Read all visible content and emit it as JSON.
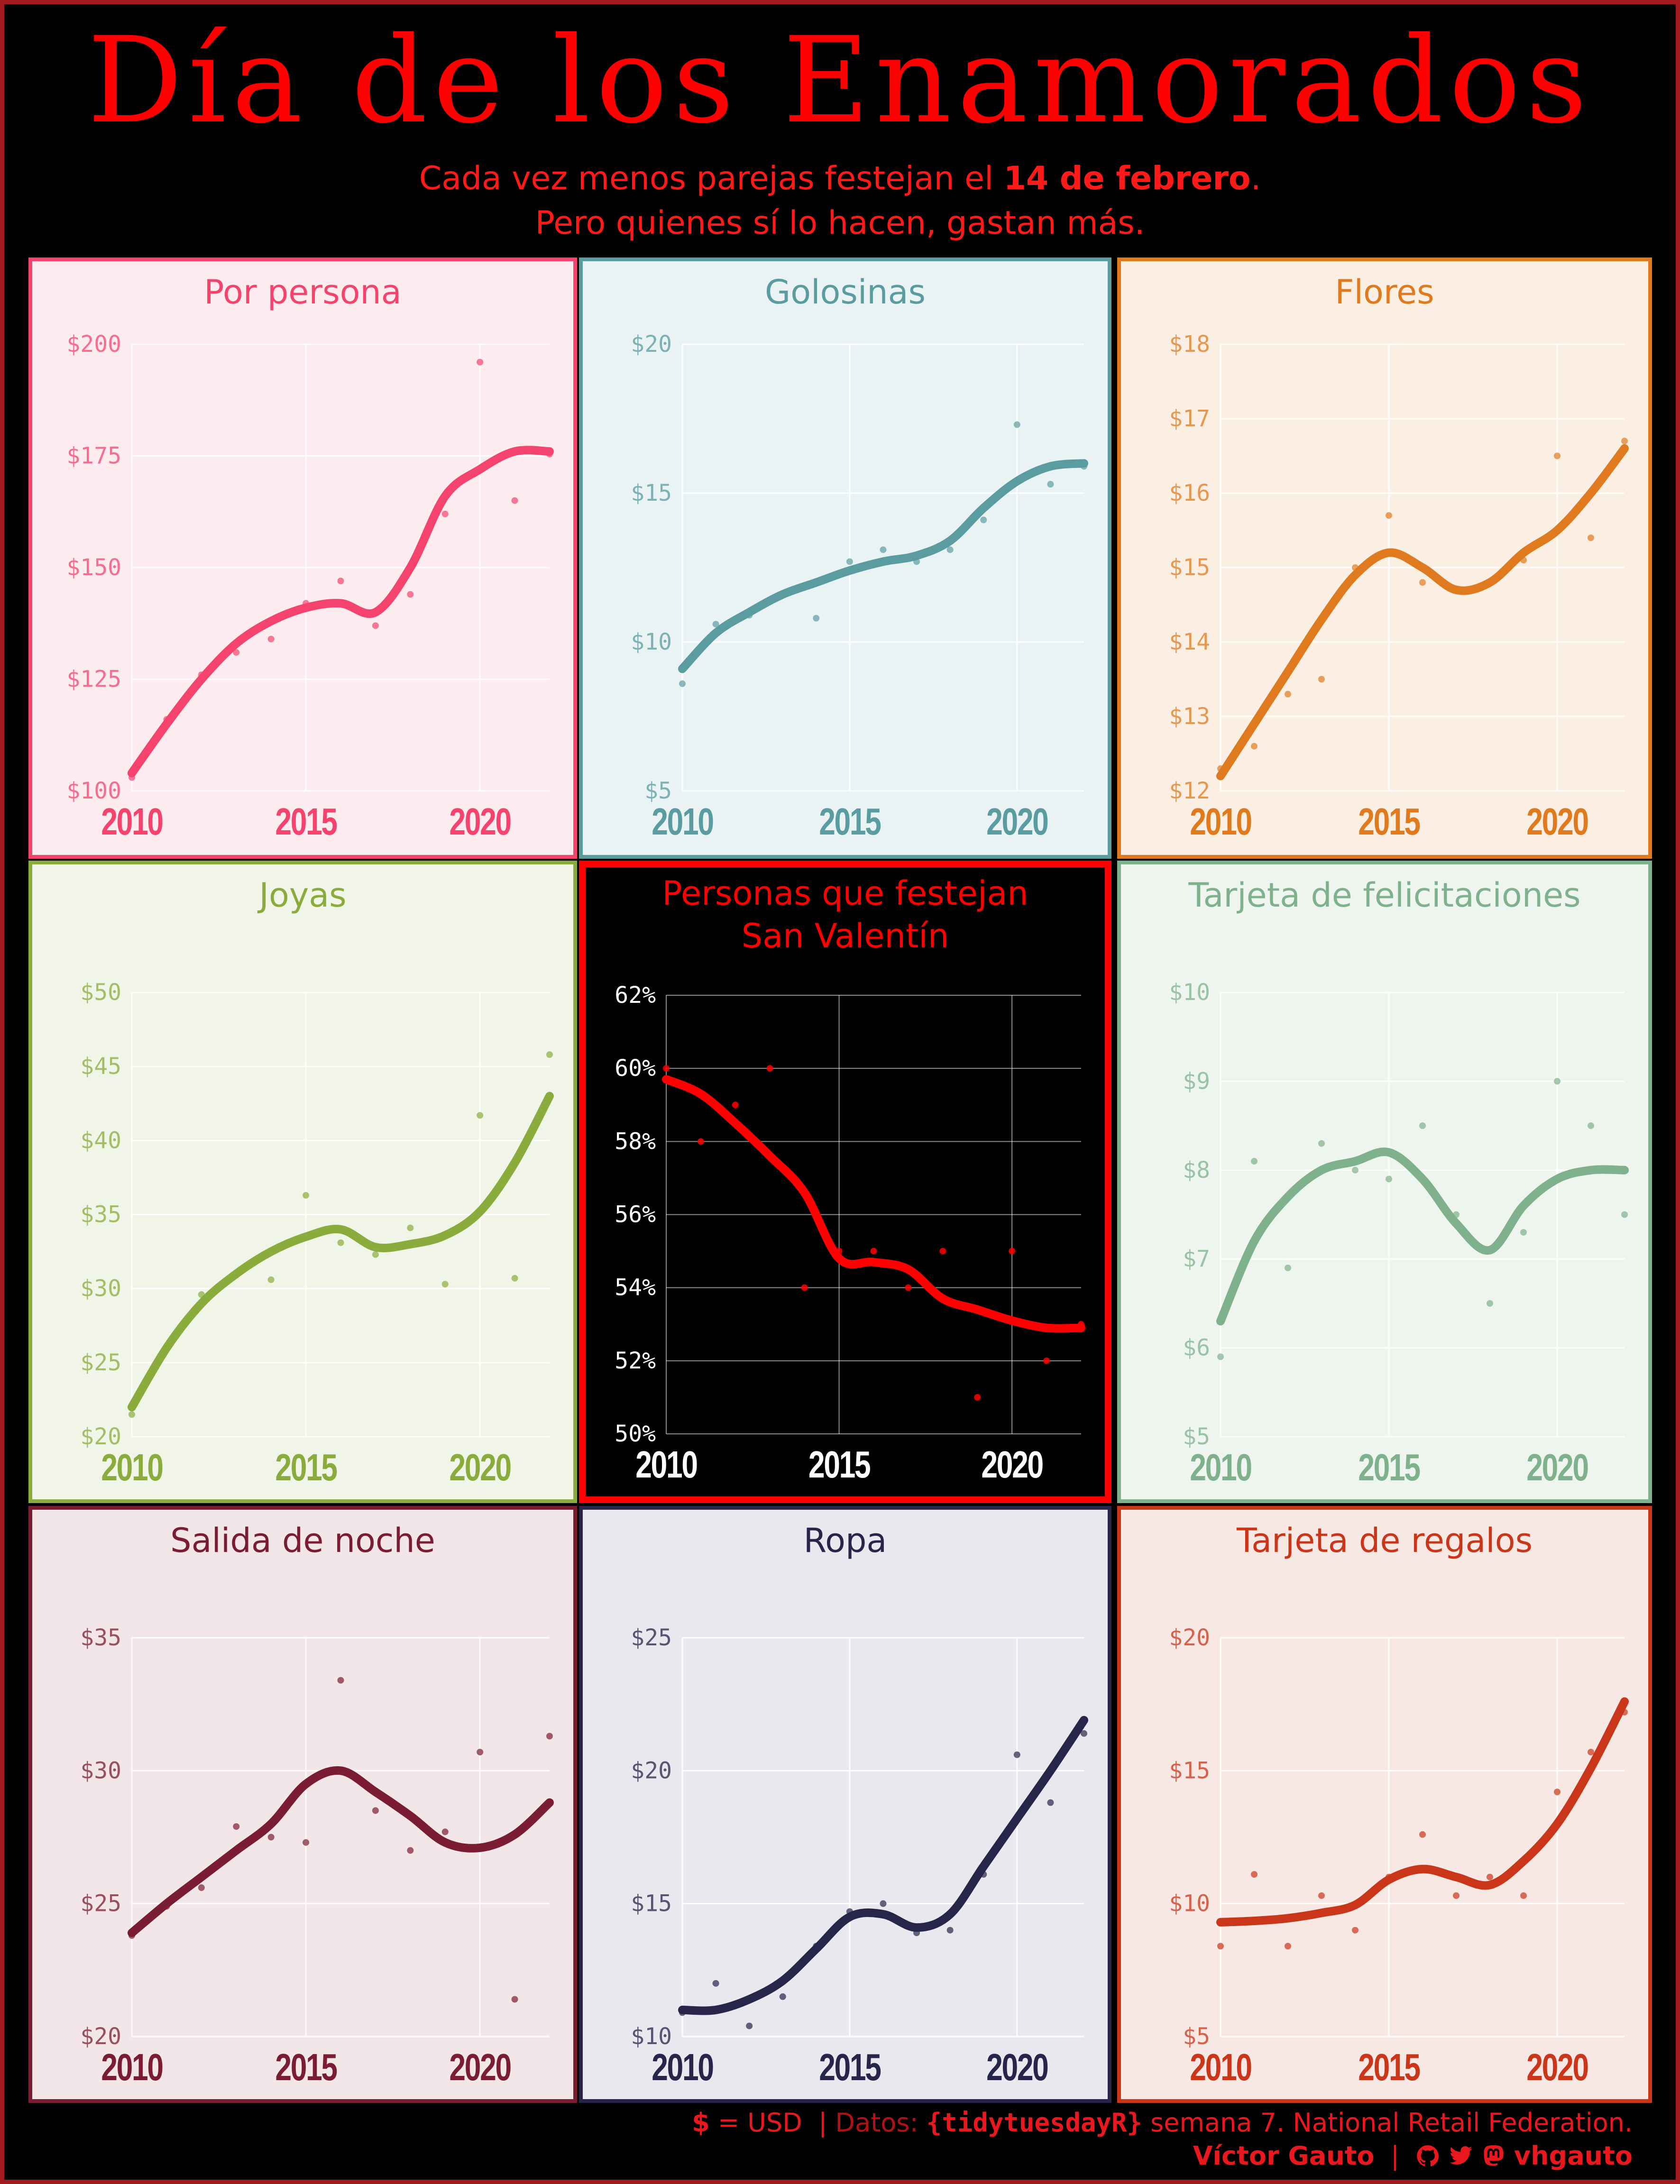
{
  "header": {
    "title": "Día de los Enamorados",
    "subtitle_line1_pre": "Cada vez menos parejas festejan el ",
    "subtitle_line1_bold": "14 de febrero",
    "subtitle_line1_post": ".",
    "subtitle_line2": "Pero quienes sí lo hacen, gastan más."
  },
  "footer": {
    "currency_symbol": "$",
    "currency_text": " = USD",
    "sep1": "|",
    "datos_label": "Datos: ",
    "source_tag": "{tidytuesdayR}",
    "source_rest": " semana 7. National Retail Federation.",
    "author": "Víctor Gauto",
    "sep2": "|",
    "handle": "vhgauto",
    "icons": [
      "github-icon",
      "twitter-icon",
      "mastodon-icon"
    ]
  },
  "chart_data": [
    {
      "id": "por-persona",
      "type": "line",
      "title": "Por persona",
      "color": "#f4446d",
      "bg": "#fdecef",
      "x": [
        2010,
        2011,
        2012,
        2013,
        2014,
        2015,
        2016,
        2017,
        2018,
        2019,
        2020,
        2021,
        2022
      ],
      "points": [
        103,
        116,
        126,
        131,
        134,
        142,
        147,
        137,
        144,
        162,
        196,
        165,
        175.4
      ],
      "trend": [
        104,
        115,
        125,
        133,
        138,
        141,
        142,
        140,
        150,
        166,
        172,
        176,
        176
      ],
      "ylim": [
        100,
        200
      ],
      "yticks": [
        100,
        125,
        150,
        175,
        200
      ],
      "ytick_labels": [
        "$100",
        "$125",
        "$150",
        "$175",
        "$200"
      ],
      "xticks": [
        2010,
        2015,
        2020
      ],
      "xtick_labels": [
        "2010",
        "2015",
        "2020"
      ]
    },
    {
      "id": "golosinas",
      "type": "line",
      "title": "Golosinas",
      "color": "#5b9ca1",
      "bg": "#eaf3f4",
      "x": [
        2010,
        2011,
        2012,
        2013,
        2014,
        2015,
        2016,
        2017,
        2018,
        2019,
        2020,
        2021,
        2022
      ],
      "points": [
        8.6,
        10.6,
        10.9,
        11.6,
        10.8,
        12.7,
        13.1,
        12.7,
        13.1,
        14.1,
        17.3,
        15.3,
        15.9
      ],
      "trend": [
        9.1,
        10.3,
        11.0,
        11.6,
        12.0,
        12.4,
        12.7,
        12.9,
        13.4,
        14.5,
        15.4,
        15.9,
        16.0
      ],
      "ylim": [
        5,
        20
      ],
      "yticks": [
        5,
        10,
        15,
        20
      ],
      "ytick_labels": [
        "$5",
        "$10",
        "$15",
        "$20"
      ],
      "xticks": [
        2010,
        2015,
        2020
      ],
      "xtick_labels": [
        "2010",
        "2015",
        "2020"
      ]
    },
    {
      "id": "flores",
      "type": "line",
      "title": "Flores",
      "color": "#e07a1f",
      "bg": "#fbefe4",
      "x": [
        2010,
        2011,
        2012,
        2013,
        2014,
        2015,
        2016,
        2017,
        2018,
        2019,
        2020,
        2021,
        2022
      ],
      "points": [
        12.3,
        12.6,
        13.3,
        13.5,
        15.0,
        15.7,
        14.8,
        14.7,
        14.8,
        15.1,
        16.5,
        15.4,
        16.7
      ],
      "trend": [
        12.2,
        12.9,
        13.6,
        14.3,
        14.9,
        15.2,
        15.0,
        14.7,
        14.8,
        15.2,
        15.5,
        16.0,
        16.6
      ],
      "ylim": [
        12,
        18
      ],
      "yticks": [
        12,
        13,
        14,
        15,
        16,
        17,
        18
      ],
      "ytick_labels": [
        "$12",
        "$13",
        "$14",
        "$15",
        "$16",
        "$17",
        "$18"
      ],
      "xticks": [
        2010,
        2015,
        2020
      ],
      "xtick_labels": [
        "2010",
        "2015",
        "2020"
      ]
    },
    {
      "id": "joyas",
      "type": "line",
      "title": "Joyas",
      "color": "#8aac3c",
      "bg": "#f1f5e8",
      "x": [
        2010,
        2011,
        2012,
        2013,
        2014,
        2015,
        2016,
        2017,
        2018,
        2019,
        2020,
        2021,
        2022
      ],
      "points": [
        21.5,
        26.0,
        29.6,
        30.9,
        30.6,
        36.3,
        33.1,
        32.3,
        34.1,
        30.3,
        41.7,
        30.7,
        45.8
      ],
      "trend": [
        22.0,
        26.0,
        29.0,
        31.0,
        32.5,
        33.5,
        34.0,
        32.8,
        33.0,
        33.6,
        35.2,
        38.5,
        43.0
      ],
      "ylim": [
        20,
        50
      ],
      "yticks": [
        20,
        25,
        30,
        35,
        40,
        45,
        50
      ],
      "ytick_labels": [
        "$20",
        "$25",
        "$30",
        "$35",
        "$40",
        "$45",
        "$50"
      ],
      "xticks": [
        2010,
        2015,
        2020
      ],
      "xtick_labels": [
        "2010",
        "2015",
        "2020"
      ]
    },
    {
      "id": "personas",
      "type": "line",
      "title": "Personas que festejan",
      "title2": "San Valentín",
      "color": "#ff0000",
      "bg": "#000000",
      "x": [
        2010,
        2011,
        2012,
        2013,
        2014,
        2015,
        2016,
        2017,
        2018,
        2019,
        2020,
        2021,
        2022
      ],
      "points": [
        60,
        58,
        59,
        60,
        54,
        55,
        55,
        54,
        55,
        51,
        55,
        52,
        53
      ],
      "trend": [
        59.7,
        59.3,
        58.5,
        57.6,
        56.6,
        54.8,
        54.7,
        54.5,
        53.7,
        53.4,
        53.1,
        52.9,
        52.9
      ],
      "ylim": [
        50,
        62
      ],
      "yticks": [
        50,
        52,
        54,
        56,
        58,
        60,
        62
      ],
      "ytick_labels": [
        "50%",
        "52%",
        "54%",
        "56%",
        "58%",
        "60%",
        "62%"
      ],
      "xticks": [
        2010,
        2015,
        2020
      ],
      "xtick_labels": [
        "2010",
        "2015",
        "2020"
      ]
    },
    {
      "id": "tarjeta-felicitaciones",
      "type": "line",
      "title": "Tarjeta de felicitaciones",
      "color": "#7fb18c",
      "bg": "#eef5ef",
      "x": [
        2010,
        2011,
        2012,
        2013,
        2014,
        2015,
        2016,
        2017,
        2018,
        2019,
        2020,
        2021,
        2022
      ],
      "points": [
        5.9,
        8.1,
        6.9,
        8.3,
        8.0,
        7.9,
        8.5,
        7.5,
        6.5,
        7.3,
        9.0,
        8.5,
        7.5
      ],
      "trend": [
        6.3,
        7.2,
        7.7,
        8.0,
        8.1,
        8.2,
        7.9,
        7.4,
        7.1,
        7.6,
        7.9,
        8.0,
        8.0
      ],
      "ylim": [
        5,
        10
      ],
      "yticks": [
        5,
        6,
        7,
        8,
        9,
        10
      ],
      "ytick_labels": [
        "$5",
        "$6",
        "$7",
        "$8",
        "$9",
        "$10"
      ],
      "xticks": [
        2010,
        2015,
        2020
      ],
      "xtick_labels": [
        "2010",
        "2015",
        "2020"
      ]
    },
    {
      "id": "salida-noche",
      "type": "line",
      "title": "Salida de noche",
      "color": "#7a1d33",
      "bg": "#f3e6e9",
      "x": [
        2010,
        2011,
        2012,
        2013,
        2014,
        2015,
        2016,
        2017,
        2018,
        2019,
        2020,
        2021,
        2022
      ],
      "points": [
        23.8,
        24.9,
        25.6,
        27.9,
        27.5,
        27.3,
        33.4,
        28.5,
        27.0,
        27.7,
        30.7,
        21.4,
        31.3
      ],
      "trend": [
        23.9,
        25.0,
        26.0,
        27.0,
        28.0,
        29.5,
        30.0,
        29.2,
        28.3,
        27.3,
        27.1,
        27.6,
        28.8
      ],
      "ylim": [
        20,
        35
      ],
      "yticks": [
        20,
        25,
        30,
        35
      ],
      "ytick_labels": [
        "$20",
        "$25",
        "$30",
        "$35"
      ],
      "xticks": [
        2010,
        2015,
        2020
      ],
      "xtick_labels": [
        "2010",
        "2015",
        "2020"
      ]
    },
    {
      "id": "ropa",
      "type": "line",
      "title": "Ropa",
      "color": "#27254a",
      "bg": "#e9e8ee",
      "x": [
        2010,
        2011,
        2012,
        2013,
        2014,
        2015,
        2016,
        2017,
        2018,
        2019,
        2020,
        2021,
        2022
      ],
      "points": [
        10.9,
        12.0,
        10.4,
        11.5,
        13.4,
        14.7,
        15.0,
        13.9,
        14.0,
        16.1,
        20.6,
        18.8,
        21.4
      ],
      "trend": [
        11.0,
        11.0,
        11.4,
        12.1,
        13.3,
        14.5,
        14.6,
        14.1,
        14.6,
        16.4,
        18.2,
        20.0,
        21.9
      ],
      "ylim": [
        10,
        25
      ],
      "yticks": [
        10,
        15,
        20,
        25
      ],
      "ytick_labels": [
        "$10",
        "$15",
        "$20",
        "$25"
      ],
      "xticks": [
        2010,
        2015,
        2020
      ],
      "xtick_labels": [
        "2010",
        "2015",
        "2020"
      ]
    },
    {
      "id": "tarjeta-regalos",
      "type": "line",
      "title": "Tarjeta de regalos",
      "color": "#c9361a",
      "bg": "#f8e8e4",
      "x": [
        2010,
        2011,
        2012,
        2013,
        2014,
        2015,
        2016,
        2017,
        2018,
        2019,
        2020,
        2021,
        2022
      ],
      "points": [
        8.4,
        11.1,
        8.4,
        10.3,
        9.0,
        11.0,
        12.6,
        10.3,
        11.0,
        10.3,
        14.2,
        15.7,
        17.2
      ],
      "trend": [
        9.3,
        9.35,
        9.45,
        9.65,
        9.95,
        10.9,
        11.3,
        11.0,
        10.7,
        11.6,
        13.0,
        15.1,
        17.6
      ],
      "ylim": [
        5,
        20
      ],
      "yticks": [
        5,
        10,
        15,
        20
      ],
      "ytick_labels": [
        "$5",
        "$10",
        "$15",
        "$20"
      ],
      "xticks": [
        2010,
        2015,
        2020
      ],
      "xtick_labels": [
        "2010",
        "2015",
        "2020"
      ]
    }
  ]
}
